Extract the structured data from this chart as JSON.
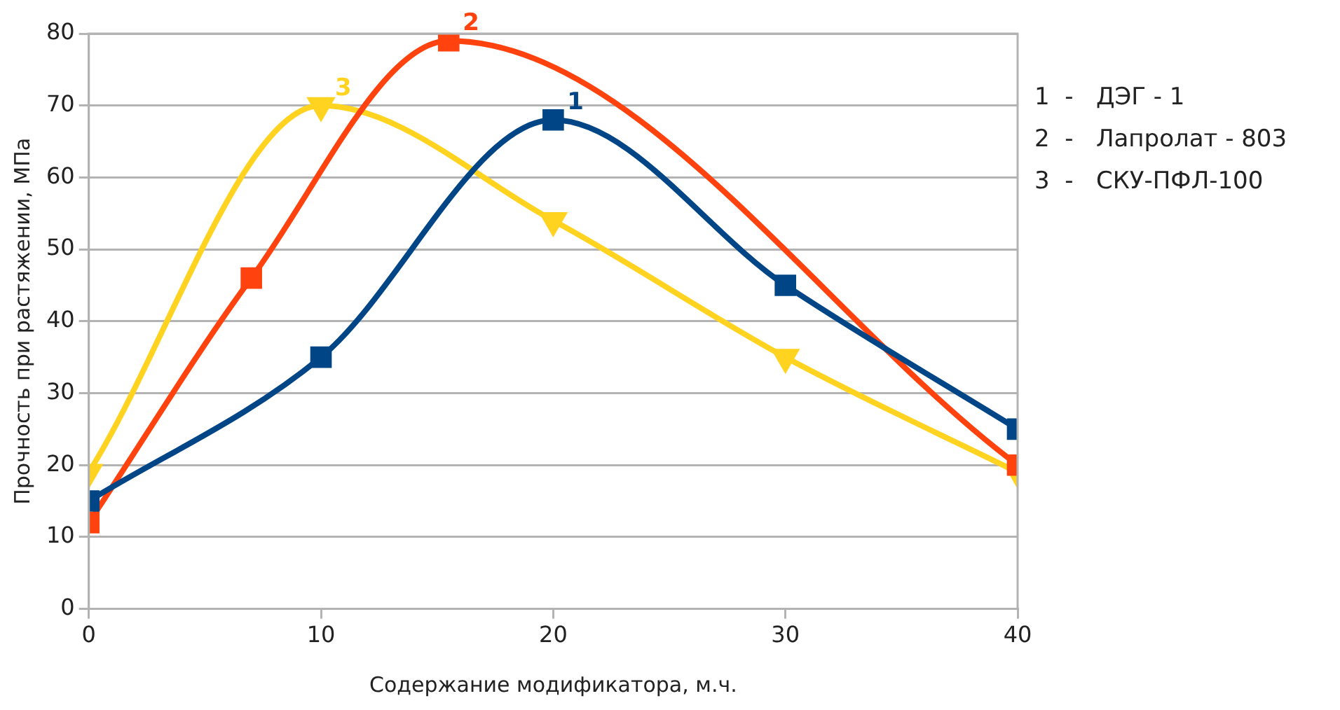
{
  "chart_data": {
    "type": "line",
    "xlabel": "Содержание модификатора, м.ч.",
    "ylabel": "Прочность при растяжении, МПа",
    "xlim": [
      0,
      40
    ],
    "xticks": [
      0,
      10,
      20,
      30,
      40
    ],
    "ylim": [
      0,
      80
    ],
    "yticks": [
      0,
      10,
      20,
      30,
      40,
      50,
      60,
      70,
      80
    ],
    "grid": "y",
    "legend": false,
    "series": [
      {
        "name": "1",
        "color": "#004586",
        "marker": "square",
        "x": [
          0,
          10,
          20,
          30,
          40
        ],
        "values": [
          15,
          35,
          68,
          45,
          25
        ]
      },
      {
        "name": "2",
        "color": "#ff420e",
        "marker": "square",
        "x": [
          0,
          7,
          15.5,
          40
        ],
        "values": [
          12,
          46,
          79,
          20
        ]
      },
      {
        "name": "3",
        "color": "#ffd320",
        "marker": "triangle",
        "x": [
          0,
          10,
          20,
          30,
          40
        ],
        "values": [
          19,
          70,
          54,
          35,
          19
        ]
      }
    ],
    "annotations": [
      "1  -   ДЭГ - 1",
      "2  -   Лапролат - 803",
      "3  -   СКУ-ПФЛ-100"
    ]
  }
}
